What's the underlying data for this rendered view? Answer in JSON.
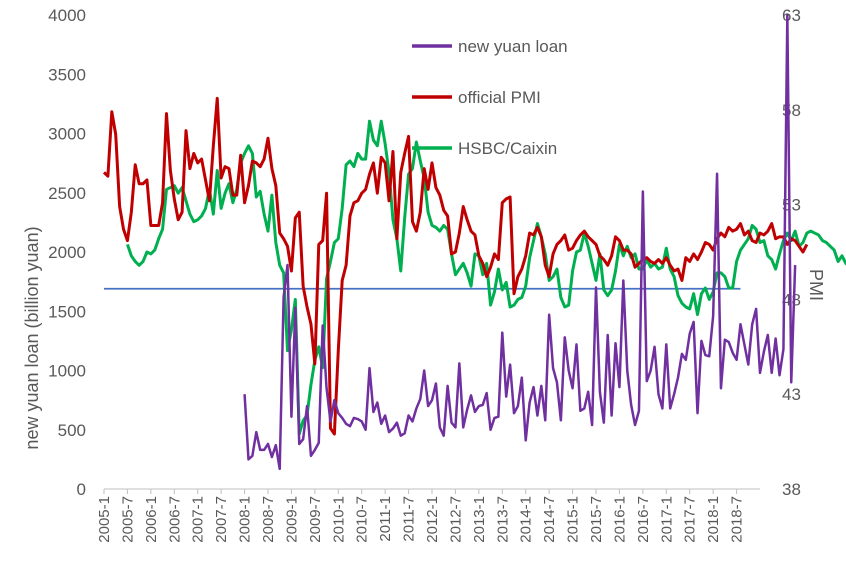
{
  "chart_data": {
    "type": "line",
    "xlabel": "",
    "ylabel": "new yuan loan (billion yuan)",
    "y2label": "PMI",
    "ylim": [
      0,
      4000
    ],
    "y2lim": [
      38,
      63
    ],
    "yticks": [
      0,
      500,
      1000,
      1500,
      2000,
      2500,
      3000,
      3500,
      4000
    ],
    "y2ticks": [
      38,
      43,
      48,
      53,
      58,
      63
    ],
    "x_tick_labels": [
      "2005-1",
      "2005-7",
      "2006-1",
      "2006-7",
      "2007-1",
      "2007-7",
      "2008-1",
      "2008-7",
      "2009-1",
      "2009-7",
      "2010-1",
      "2010-7",
      "2011-1",
      "2011-7",
      "2012-1",
      "2012-7",
      "2013-1",
      "2013-7",
      "2014-1",
      "2014-7",
      "2015-1",
      "2015-7",
      "2016-1",
      "2016-7",
      "2017-1",
      "2017-7",
      "2018-1",
      "2018-7"
    ],
    "grid": false,
    "legend_position": "top-center",
    "series": [
      {
        "name": "new yuan loan",
        "axis": "left",
        "color": "#7030a0",
        "start": "2008-1",
        "values": [
          800,
          250,
          280,
          480,
          330,
          330,
          380,
          270,
          370,
          170,
          1620,
          1890,
          610,
          1530,
          380,
          420,
          700,
          280,
          330,
          390,
          1380,
          850,
          570,
          750,
          640,
          600,
          550,
          530,
          600,
          590,
          570,
          500,
          1020,
          650,
          730,
          550,
          620,
          480,
          510,
          560,
          450,
          470,
          620,
          570,
          680,
          760,
          1000,
          700,
          750,
          890,
          520,
          450,
          870,
          560,
          520,
          1060,
          520,
          670,
          790,
          650,
          700,
          710,
          810,
          500,
          600,
          610,
          1320,
          780,
          1050,
          640,
          700,
          940,
          410,
          730,
          860,
          620,
          870,
          580,
          1470,
          1020,
          900,
          580,
          1280,
          1000,
          850,
          1220,
          660,
          680,
          820,
          540,
          1700,
          820,
          560,
          1300,
          620,
          1230,
          860,
          1760,
          1000,
          710,
          540,
          660,
          2510,
          910,
          1000,
          1200,
          800,
          680,
          1220,
          680,
          800,
          940,
          1140,
          1090,
          1310,
          1410,
          640,
          1250,
          1130,
          1120,
          1460,
          2660,
          850,
          1260,
          1240,
          1150,
          1090,
          1390,
          1220,
          1050,
          1390,
          1520,
          980,
          1160,
          1300,
          980,
          1270,
          960,
          1180,
          4000,
          900,
          1890
        ]
      },
      {
        "name": "official PMI",
        "axis": "right",
        "color": "#c00000",
        "start": "2005-1",
        "values": [
          54.7,
          54.5,
          57.9,
          56.7,
          52.9,
          51.7,
          51.1,
          52.6,
          55.1,
          54.1,
          54.1,
          54.3,
          51.9,
          51.9,
          51.9,
          53.1,
          57.8,
          54.8,
          53.3,
          52.2,
          52.6,
          56.9,
          54.9,
          55.7,
          55.2,
          55.4,
          54.3,
          53.2,
          56.1,
          58.6,
          54.4,
          55,
          54.9,
          53.5,
          53.5,
          55.6,
          53.1,
          54,
          55.3,
          55.2,
          55,
          55.4,
          56.5,
          54.9,
          54,
          51.5,
          51.2,
          50.8,
          49.5,
          52.3,
          52.6,
          48.7,
          47.6,
          46.7,
          44.6,
          50.9,
          51.1,
          53.6,
          41.2,
          40.9,
          45.3,
          49.0,
          49.8,
          52.4,
          53.1,
          53.2,
          53.6,
          53.8,
          54.6,
          55.2,
          53.6,
          55.5,
          55.2,
          53.2,
          55.8,
          51.2,
          54.7,
          55.7,
          56.6,
          52.1,
          51.6,
          52.6,
          54.9,
          53.8,
          55.2,
          53.9,
          53.5,
          52.7,
          52.4,
          50.4,
          50.5,
          51.5,
          52.9,
          52.2,
          51.6,
          51.4,
          50.3,
          49.9,
          49.2,
          49.7,
          50.4,
          50.1,
          53.1,
          53.3,
          53.4,
          48.3,
          49.2,
          49.6,
          50.3,
          51.5,
          51.4,
          51.8,
          51.3,
          49.8,
          49.2,
          50.4,
          50.9,
          51.1,
          51.4,
          50.6,
          50.7,
          51.1,
          51.4,
          51.6,
          51.3,
          51.1,
          50.9,
          50.3,
          50.1,
          49.8,
          50.3,
          51.3,
          51.1,
          50.6,
          50.6,
          50.4,
          49.7,
          49.9,
          50.1,
          50.2,
          50,
          49.9,
          50.1,
          49.9,
          50.2,
          49.8,
          49.5,
          49.6,
          49,
          50.2,
          50,
          50.4,
          50.1,
          50.5,
          51,
          50.9,
          50.6,
          51.2,
          51.5,
          51.3,
          51.8,
          51.6,
          51.7,
          52,
          51.4,
          51.6,
          51.1,
          51,
          51.5,
          51.4,
          51.6,
          52,
          51.2,
          51.3,
          51.3,
          50.9,
          51.2,
          51.1,
          50.8,
          50.5,
          50.9
        ]
      },
      {
        "name": "HSBC/Caixin",
        "axis": "right",
        "color": "#00b050",
        "start": "2005-7",
        "values": [
          50.9,
          50.3,
          50,
          49.8,
          50,
          50.5,
          50.4,
          50.6,
          51.2,
          51.7,
          53.8,
          53.9,
          54,
          53.6,
          53.9,
          53.2,
          52.5,
          52.1,
          52.2,
          52.4,
          52.8,
          53.8,
          52.5,
          54.8,
          52.8,
          53.6,
          54.1,
          53.1,
          53.8,
          55.2,
          55.7,
          56.1,
          55.7,
          53.4,
          53.7,
          52.5,
          51.6,
          53.5,
          51,
          49.8,
          49.4,
          45.3,
          46.4,
          48.0,
          40.9,
          41.6,
          41.9,
          43.5,
          44.8,
          45.5,
          44.4,
          49.1,
          50.0,
          51.0,
          51.2,
          52.8,
          55.1,
          55.3,
          55.0,
          55.7,
          55.4,
          55.4,
          57.4,
          56.4,
          56.1,
          57.4,
          56.2,
          54.7,
          52.2,
          51.2,
          49.5,
          52.3,
          54.6,
          54.9,
          56.3,
          55.3,
          54.4,
          52.6,
          51.9,
          51.8,
          51.6,
          51.9,
          51.7,
          50.4,
          49.3,
          49.6,
          49.9,
          49.4,
          48.7,
          50.4,
          50.3,
          49.3,
          49.9,
          47.7,
          48.4,
          49.6,
          48.5,
          48.9,
          47.6,
          47.7,
          48,
          48.1,
          48.7,
          50.2,
          51.1,
          52,
          51.3,
          50.4,
          49,
          49.2,
          49.6,
          48.1,
          47.6,
          47.7,
          49.5,
          50.5,
          50.6,
          51.5,
          50.8,
          49.9,
          49,
          50.4,
          48.5,
          48.2,
          48.5,
          49.5,
          50.9,
          50.3,
          50.8,
          50.2,
          50.4,
          49.6,
          49.6,
          50.1,
          49.7,
          49.9,
          49.6,
          49.7,
          50.7,
          49.6,
          49.2,
          48.2,
          47.8,
          47.6,
          47.5,
          48.3,
          47.2,
          48.3,
          48.6,
          48,
          48.4,
          49.4,
          49.4,
          49.2,
          48.6,
          48.6,
          50.0,
          50.6,
          50.9,
          51.2,
          51.9,
          51.7,
          51.0,
          51.1,
          50.3,
          50.1,
          49.6,
          50.4,
          51.1,
          51.5,
          51.1,
          51.6,
          50.8,
          51,
          51.5,
          51.6,
          51.5,
          51.4,
          51.1,
          51.0,
          50.8,
          50.6,
          50.0,
          50.3,
          49.9,
          49.7,
          48.3,
          50.8
        ]
      }
    ]
  }
}
